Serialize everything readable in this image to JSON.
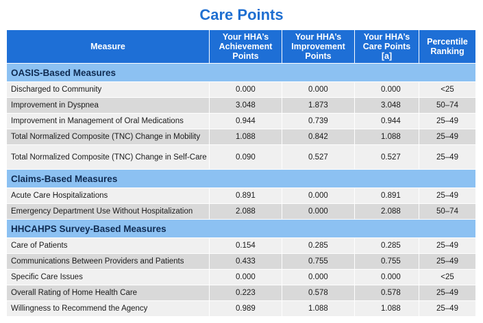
{
  "title": "Care Points",
  "headers": {
    "measure": "Measure",
    "achievement": "Your HHA’s Achievement Points",
    "improvement": "Your HHA’s Improvement Points",
    "care_points": "Your HHA’s Care Points [a]",
    "percentile": "Percentile Ranking"
  },
  "sections": [
    {
      "label": "OASIS-Based Measures",
      "rows": [
        {
          "measure": "Discharged to Community",
          "achievement": "0.000",
          "improvement": "0.000",
          "care_points": "0.000",
          "percentile": "<25"
        },
        {
          "measure": "Improvement in Dyspnea",
          "achievement": "3.048",
          "improvement": "1.873",
          "care_points": "3.048",
          "percentile": "50–74"
        },
        {
          "measure": "Improvement in Management of Oral Medications",
          "achievement": "0.944",
          "improvement": "0.739",
          "care_points": "0.944",
          "percentile": "25–49"
        },
        {
          "measure": "Total Normalized Composite (TNC) Change in Mobility",
          "achievement": "1.088",
          "improvement": "0.842",
          "care_points": "1.088",
          "percentile": "25–49"
        },
        {
          "measure": "Total Normalized Composite (TNC) Change in Self-Care",
          "achievement": "0.090",
          "improvement": "0.527",
          "care_points": "0.527",
          "percentile": "25–49"
        }
      ]
    },
    {
      "label": "Claims-Based Measures",
      "rows": [
        {
          "measure": "Acute Care Hospitalizations",
          "achievement": "0.891",
          "improvement": "0.000",
          "care_points": "0.891",
          "percentile": "25–49"
        },
        {
          "measure": "Emergency Department Use Without Hospitalization",
          "achievement": "2.088",
          "improvement": "0.000",
          "care_points": "2.088",
          "percentile": "50–74"
        }
      ]
    },
    {
      "label": "HHCAHPS Survey-Based Measures",
      "rows": [
        {
          "measure": "Care of Patients",
          "achievement": "0.154",
          "improvement": "0.285",
          "care_points": "0.285",
          "percentile": "25–49"
        },
        {
          "measure": "Communications Between Providers and Patients",
          "achievement": "0.433",
          "improvement": "0.755",
          "care_points": "0.755",
          "percentile": "25–49"
        },
        {
          "measure": "Specific Care Issues",
          "achievement": "0.000",
          "improvement": "0.000",
          "care_points": "0.000",
          "percentile": "<25"
        },
        {
          "measure": "Overall Rating of Home Health Care",
          "achievement": "0.223",
          "improvement": "0.578",
          "care_points": "0.578",
          "percentile": "25–49"
        },
        {
          "measure": "Willingness to Recommend the Agency",
          "achievement": "0.989",
          "improvement": "1.088",
          "care_points": "1.088",
          "percentile": "25–49"
        }
      ]
    }
  ]
}
